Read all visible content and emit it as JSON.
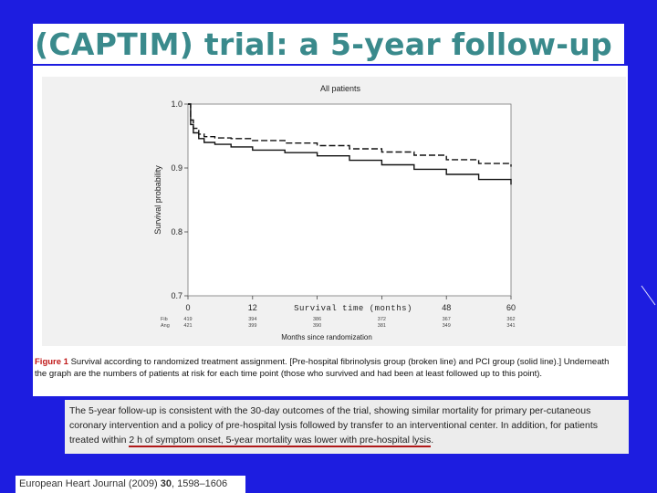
{
  "slide": {
    "title": "(CAPTIM) trial: a 5-year follow-up",
    "reference_journal": "European Heart Journal (2009) ",
    "reference_volume": "30",
    "reference_pages": ", 1598–1606"
  },
  "caption": {
    "label": "Figure 1",
    "text": "  Survival according to randomized treatment assignment. [Pre-hospital fibrinolysis group (broken line) and PCI group (solid line).] Underneath the graph are the numbers of patients at risk for each time point (those who survived and had been at least followed up to this point)."
  },
  "paragraph": {
    "text_before": "The 5-year follow-up is consistent with the 30-day outcomes of the trial, showing similar mortality for primary per-cutaneous coronary intervention and a policy of pre-hospital lysis followed by transfer to an interventional center. In addition, for patients treated within ",
    "text_highlight": "2 h of symptom onset, 5-year mortality was lower with pre-hospital lysis",
    "text_after": "."
  },
  "colors": {
    "background": "#1d1de0",
    "title": "#3a8a8c",
    "figure_label": "#c01818"
  },
  "chart_data": {
    "type": "line",
    "title": "All patients",
    "ylabel": "Survival probability",
    "xlabel_upper": "Survival time (months)",
    "xlabel_lower": "Months since randomization",
    "xlim": [
      0,
      60
    ],
    "ylim": [
      0.7,
      1.0
    ],
    "xticks": [
      0,
      12,
      24,
      36,
      48,
      60
    ],
    "xtick_labels": [
      "0",
      "12",
      "",
      "",
      "48",
      "60"
    ],
    "yticks": [
      0.7,
      0.8,
      0.9,
      1.0
    ],
    "ytick_labels": [
      "0.7",
      "0.8",
      "0.9",
      "1.0"
    ],
    "series": [
      {
        "style": "broken",
        "x": [
          0,
          0.5,
          1,
          2,
          3,
          5,
          8,
          12,
          18,
          24,
          30,
          36,
          42,
          48,
          54,
          60
        ],
        "y": [
          1.0,
          0.975,
          0.962,
          0.953,
          0.949,
          0.947,
          0.946,
          0.943,
          0.939,
          0.935,
          0.93,
          0.925,
          0.92,
          0.913,
          0.907,
          0.902
        ]
      },
      {
        "style": "solid",
        "x": [
          0,
          0.5,
          1,
          2,
          3,
          5,
          8,
          12,
          18,
          24,
          30,
          36,
          42,
          48,
          54,
          60
        ],
        "y": [
          1.0,
          0.968,
          0.955,
          0.946,
          0.94,
          0.937,
          0.933,
          0.928,
          0.924,
          0.919,
          0.912,
          0.905,
          0.898,
          0.89,
          0.882,
          0.874
        ]
      }
    ],
    "at_risk": [
      {
        "label": "Fib",
        "values": [
          "419",
          "394",
          "386",
          "372",
          "367",
          "362"
        ]
      },
      {
        "label": "Ang",
        "values": [
          "421",
          "399",
          "390",
          "381",
          "349",
          "341"
        ]
      }
    ]
  }
}
